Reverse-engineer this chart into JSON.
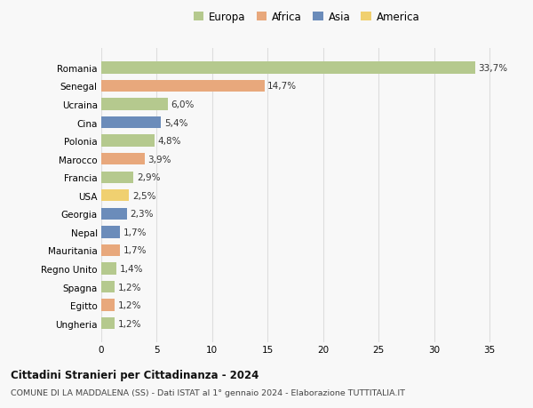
{
  "countries": [
    "Ungheria",
    "Egitto",
    "Spagna",
    "Regno Unito",
    "Mauritania",
    "Nepal",
    "Georgia",
    "USA",
    "Francia",
    "Marocco",
    "Polonia",
    "Cina",
    "Ucraina",
    "Senegal",
    "Romania"
  ],
  "values": [
    1.2,
    1.2,
    1.2,
    1.4,
    1.7,
    1.7,
    2.3,
    2.5,
    2.9,
    3.9,
    4.8,
    5.4,
    6.0,
    14.7,
    33.7
  ],
  "labels": [
    "1,2%",
    "1,2%",
    "1,2%",
    "1,4%",
    "1,7%",
    "1,7%",
    "2,3%",
    "2,5%",
    "2,9%",
    "3,9%",
    "4,8%",
    "5,4%",
    "6,0%",
    "14,7%",
    "33,7%"
  ],
  "continents": [
    "Europa",
    "Africa",
    "Europa",
    "Europa",
    "Africa",
    "Asia",
    "Asia",
    "America",
    "Europa",
    "Africa",
    "Europa",
    "Asia",
    "Europa",
    "Africa",
    "Europa"
  ],
  "colors": {
    "Europa": "#b5c98e",
    "Africa": "#e8a87c",
    "Asia": "#6b8cba",
    "America": "#f0d070"
  },
  "legend_order": [
    "Europa",
    "Africa",
    "Asia",
    "America"
  ],
  "title": "Cittadini Stranieri per Cittadinanza - 2024",
  "subtitle": "COMUNE DI LA MADDALENA (SS) - Dati ISTAT al 1° gennaio 2024 - Elaborazione TUTTITALIA.IT",
  "xlim": [
    0,
    37
  ],
  "xticks": [
    0,
    5,
    10,
    15,
    20,
    25,
    30,
    35
  ],
  "background_color": "#f8f8f8",
  "grid_color": "#dddddd",
  "bar_height": 0.65
}
